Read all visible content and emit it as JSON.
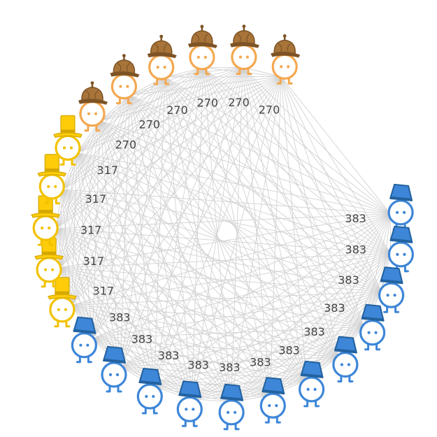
{
  "colors": {
    "edge": "#d2d2d2",
    "label": "#444444",
    "orange": {
      "body": "#ffb75e",
      "hat": "#a8743a",
      "hat_dark": "#7e5426",
      "line": "#f4a850"
    },
    "gold": {
      "body": "#ffd21f",
      "hat": "#ffcc0a",
      "hat_dark": "#d4a800",
      "line": "#f2c200"
    },
    "blue": {
      "body": "#3d86d8",
      "hat": "#3d86d8",
      "hat_dark": "#22619e",
      "line": "#3d86d8"
    }
  },
  "groups": [
    {
      "name": "orange",
      "hat": "deerstalker-hat-icon",
      "count": 6,
      "label": "270"
    },
    {
      "name": "gold",
      "hat": "top-hat-icon",
      "count": 5,
      "label": "317"
    },
    {
      "name": "blue",
      "hat": "bucket-hat-icon",
      "count": 12,
      "label": "383"
    }
  ],
  "nodes": [
    {
      "group": "orange",
      "label": "270"
    },
    {
      "group": "orange",
      "label": "270"
    },
    {
      "group": "orange",
      "label": "270"
    },
    {
      "group": "orange",
      "label": "270"
    },
    {
      "group": "orange",
      "label": "270"
    },
    {
      "group": "orange",
      "label": "270"
    },
    {
      "group": "gold",
      "label": "317"
    },
    {
      "group": "gold",
      "label": "317"
    },
    {
      "group": "gold",
      "label": "317"
    },
    {
      "group": "gold",
      "label": "317"
    },
    {
      "group": "gold",
      "label": "317"
    },
    {
      "group": "blue",
      "label": "383"
    },
    {
      "group": "blue",
      "label": "383"
    },
    {
      "group": "blue",
      "label": "383"
    },
    {
      "group": "blue",
      "label": "383"
    },
    {
      "group": "blue",
      "label": "383"
    },
    {
      "group": "blue",
      "label": "383"
    },
    {
      "group": "blue",
      "label": "383"
    },
    {
      "group": "blue",
      "label": "383"
    },
    {
      "group": "blue",
      "label": "383"
    },
    {
      "group": "blue",
      "label": "383"
    },
    {
      "group": "blue",
      "label": "383"
    },
    {
      "group": "blue",
      "label": "383"
    }
  ],
  "edges": "complete"
}
